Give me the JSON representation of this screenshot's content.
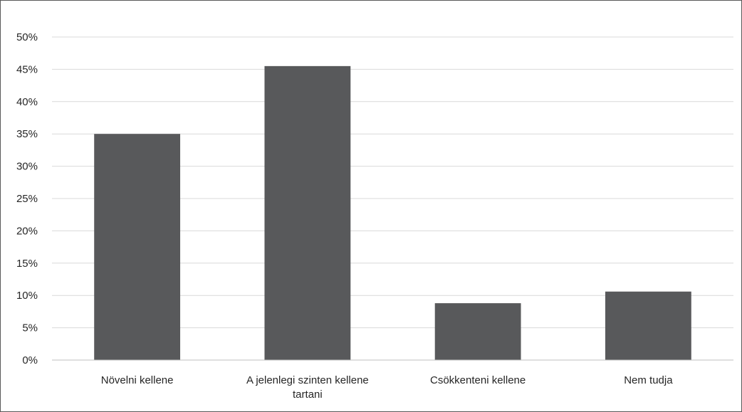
{
  "chart_data": {
    "type": "bar",
    "categories": [
      [
        "Növelni kellene"
      ],
      [
        "A jelenlegi szinten kellene",
        "tartani"
      ],
      [
        "Csökkenteni kellene"
      ],
      [
        "Nem tudja"
      ]
    ],
    "values": [
      35.0,
      45.5,
      8.8,
      10.6
    ],
    "y_ticks": [
      "0%",
      "5%",
      "10%",
      "15%",
      "20%",
      "25%",
      "30%",
      "35%",
      "40%",
      "45%",
      "50%"
    ],
    "ylim": [
      0,
      50
    ],
    "grid": true,
    "colors": {
      "bar": "#58595b",
      "grid": "#d9d9d9",
      "axis": "#bfbfbf"
    }
  }
}
